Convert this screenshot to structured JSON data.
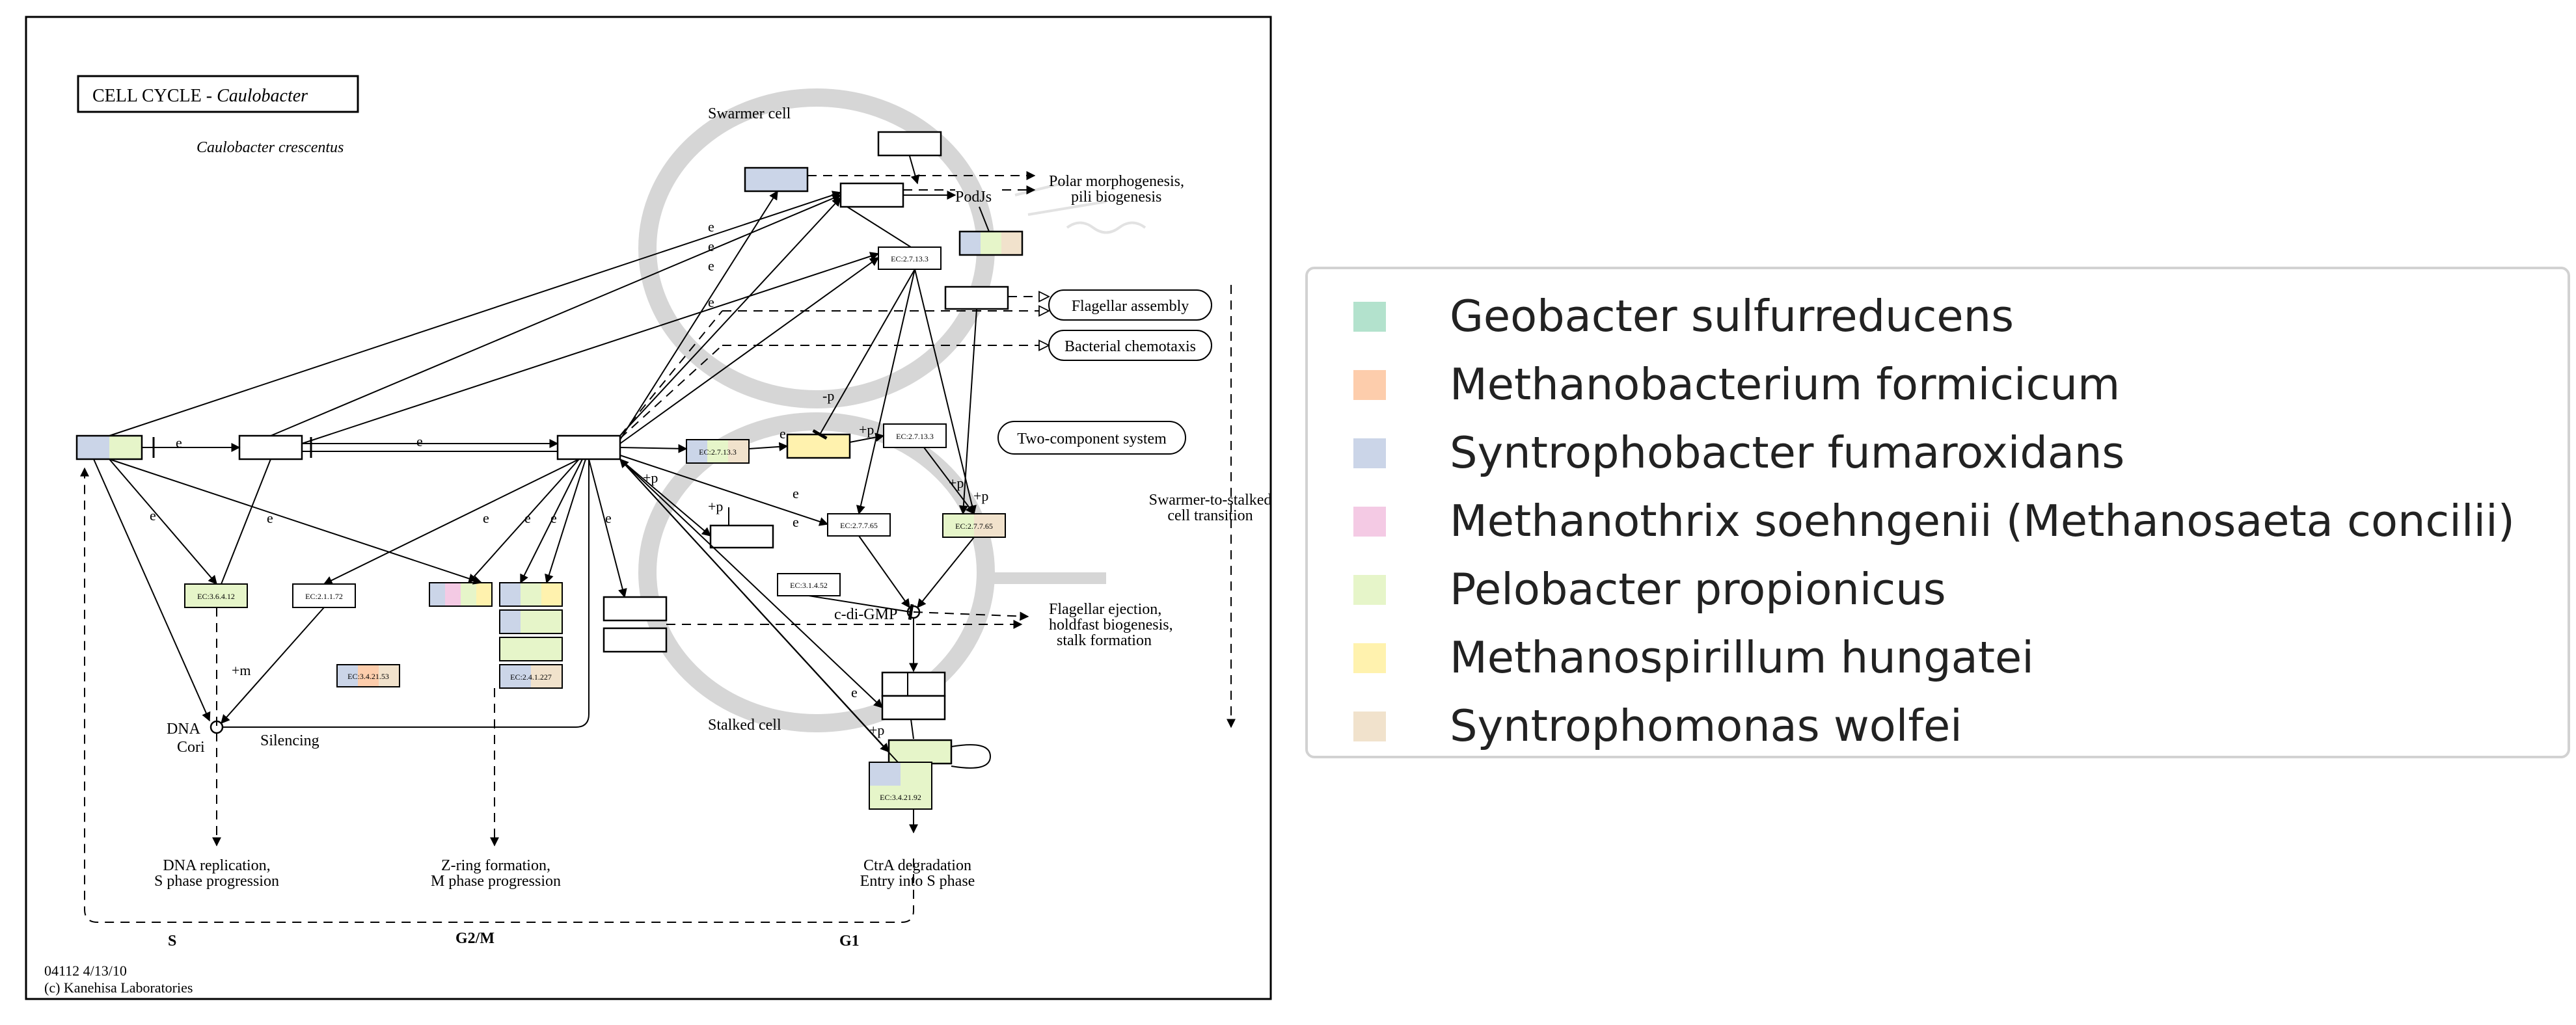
{
  "diagram": {
    "title_main": "CELL CYCLE - ",
    "title_species": "Caulobacter",
    "subtitle": "Caulobacter crescentus",
    "labels": {
      "swarmer_cell": "Swarmer cell",
      "stalked_cell": "Stalked cell",
      "podjs": "PodJs",
      "polar_morph_1": "Polar morphogenesis,",
      "polar_morph_2": "pili biogenesis",
      "flagellar_assembly": "Flagellar assembly",
      "bacterial_chemotaxis": "Bacterial chemotaxis",
      "two_component": "Two-component system",
      "swarmer_stalked_1": "Swarmer-to-stalked",
      "swarmer_stalked_2": "cell transition",
      "flag_eject_1": "Flagellar ejection,",
      "flag_eject_2": "holdfast biogenesis,",
      "flag_eject_3": "stalk formation",
      "cdi_gmp": "c-di-GMP",
      "dna_1": "DNA",
      "dna_2": "Cori",
      "silencing": "Silencing",
      "dna_rep_1": "DNA replication,",
      "dna_rep_2": "S phase progression",
      "zring_1": "Z-ring formation,",
      "zring_2": "M phase progression",
      "ctra_1": "CtrA degradation",
      "ctra_2": "Entry into S phase",
      "phase_s": "S",
      "phase_g2m": "G2/M",
      "phase_g1": "G1",
      "footer_1": "04112 4/13/10",
      "footer_2": "(c) Kanehisa Laboratories",
      "e": "e",
      "plus_p": "+p",
      "minus_p": "-p",
      "plus_m": "+m"
    },
    "ec_numbers": {
      "ec_2_7_13_3": "EC:2.7.13.3",
      "ec_2_7_7_65": "EC:2.7.7.65",
      "ec_3_1_4_52": "EC:3.1.4.52",
      "ec_3_6_4_12": "EC:3.6.4.12",
      "ec_2_1_1_72": "EC:2.1.1.72",
      "ec_3_4_21_53": "EC:3.4.21.53",
      "ec_2_4_1_227": "EC:2.4.1.227",
      "ec_3_4_21_92": "EC:3.4.21.92"
    }
  },
  "legend": {
    "items": [
      {
        "label": "Geobacter sulfurreducens",
        "color": "#b3e2cd"
      },
      {
        "label": "Methanobacterium formicicum",
        "color": "#fdcdac"
      },
      {
        "label": "Syntrophobacter fumaroxidans",
        "color": "#cbd5e8"
      },
      {
        "label": "Methanothrix soehngenii (Methanosaeta concilii)",
        "color": "#f4cae4"
      },
      {
        "label": "Pelobacter propionicus",
        "color": "#e6f5c9"
      },
      {
        "label": "Methanospirillum hungatei",
        "color": "#fff2ae"
      },
      {
        "label": "Syntrophomonas wolfei",
        "color": "#f1e2cc"
      }
    ]
  },
  "colors": {
    "line": "#000000",
    "cell_outline": "#d6d6d6"
  }
}
